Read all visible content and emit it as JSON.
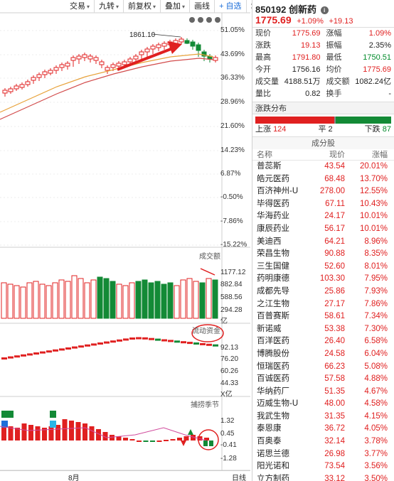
{
  "toolbar": {
    "items": [
      "交易",
      "九转",
      "前复权",
      "叠加",
      "画线",
      "+ 自选",
      "≫"
    ]
  },
  "main_chart": {
    "peak_label": "1861.10",
    "y_labels": [
      "51.05%",
      "43.69%",
      "36.33%",
      "28.96%",
      "21.60%",
      "14.23%",
      "6.87%",
      "-0.50%",
      "-7.86%",
      "-15.22%"
    ]
  },
  "volume_pane": {
    "title": "成交额",
    "y_labels": [
      "1177.12",
      "882.84",
      "588.56",
      "294.28",
      "亿"
    ],
    "unit": "X亿"
  },
  "flow_pane": {
    "title": "流动资金",
    "y_labels": [
      "92.13",
      "76.20",
      "60.26",
      "44.33",
      "X亿"
    ]
  },
  "indicator_pane": {
    "title": "捕捞季节",
    "y_labels": [
      "1.32",
      "0.45",
      "-0.41",
      "-1.28"
    ]
  },
  "bottom_bar": {
    "month": "8月",
    "period": "日线"
  },
  "stock": {
    "code": "850192",
    "name": "创新药",
    "price": "1775.69",
    "change_pct": "+1.09%",
    "change_val": "+19.13"
  },
  "quote": {
    "rows": [
      [
        {
          "label": "现价",
          "value": "1775.69",
          "color": "red"
        },
        {
          "label": "涨幅",
          "value": "1.09%",
          "color": "red"
        }
      ],
      [
        {
          "label": "涨跌",
          "value": "19.13",
          "color": "red"
        },
        {
          "label": "振幅",
          "value": "2.35%",
          "color": "black"
        }
      ],
      [
        {
          "label": "最高",
          "value": "1791.80",
          "color": "red"
        },
        {
          "label": "最低",
          "value": "1750.51",
          "color": "green"
        }
      ],
      [
        {
          "label": "今开",
          "value": "1756.16",
          "color": "black"
        },
        {
          "label": "均价",
          "value": "1775.69",
          "color": "red"
        }
      ],
      [
        {
          "label": "成交量",
          "value": "4188.51万",
          "color": "black"
        },
        {
          "label": "成交额",
          "value": "1082.24亿",
          "color": "black"
        }
      ],
      [
        {
          "label": "量比",
          "value": "0.82",
          "color": "black"
        },
        {
          "label": "换手",
          "value": "-",
          "color": "black"
        }
      ]
    ]
  },
  "distribution": {
    "title": "涨跌分布",
    "up_label": "上涨",
    "up": "124",
    "flat_label": "平",
    "flat": "2",
    "down_label": "下跌",
    "down": "87"
  },
  "constituents": {
    "title": "成分股",
    "col_name": "名称",
    "col_price": "现价",
    "col_change": "涨幅",
    "rows": [
      {
        "name": "普蕊斯",
        "price": "43.54",
        "change": "20.01%"
      },
      {
        "name": "皓元医药",
        "price": "68.48",
        "change": "13.70%"
      },
      {
        "name": "百济神州-U",
        "price": "278.00",
        "change": "12.55%"
      },
      {
        "name": "毕得医药",
        "price": "67.11",
        "change": "10.43%"
      },
      {
        "name": "华海药业",
        "price": "24.17",
        "change": "10.01%"
      },
      {
        "name": "康辰药业",
        "price": "56.17",
        "change": "10.01%"
      },
      {
        "name": "美迪西",
        "price": "64.21",
        "change": "8.96%"
      },
      {
        "name": "荣昌生物",
        "price": "90.88",
        "change": "8.35%"
      },
      {
        "name": "三生国健",
        "price": "52.60",
        "change": "8.01%"
      },
      {
        "name": "药明康德",
        "price": "103.30",
        "change": "7.95%"
      },
      {
        "name": "成都先导",
        "price": "25.86",
        "change": "7.93%"
      },
      {
        "name": "之江生物",
        "price": "27.17",
        "change": "7.86%"
      },
      {
        "name": "百普赛斯",
        "price": "58.61",
        "change": "7.34%"
      },
      {
        "name": "新诺威",
        "price": "53.38",
        "change": "7.30%"
      },
      {
        "name": "百洋医药",
        "price": "26.40",
        "change": "6.58%"
      },
      {
        "name": "博腾股份",
        "price": "24.58",
        "change": "6.04%"
      },
      {
        "name": "恒瑞医药",
        "price": "66.23",
        "change": "5.08%"
      },
      {
        "name": "百诚医药",
        "price": "57.58",
        "change": "4.88%"
      },
      {
        "name": "华纳药厂",
        "price": "51.35",
        "change": "4.67%"
      },
      {
        "name": "迈威生物-U",
        "price": "48.00",
        "change": "4.58%"
      },
      {
        "name": "我武生物",
        "price": "31.35",
        "change": "4.15%"
      },
      {
        "name": "泰恩康",
        "price": "36.72",
        "change": "4.05%"
      },
      {
        "name": "百奥泰",
        "price": "32.14",
        "change": "3.78%"
      },
      {
        "name": "诺思兰德",
        "price": "26.98",
        "change": "3.77%"
      },
      {
        "name": "阳光诺和",
        "price": "73.54",
        "change": "3.56%"
      },
      {
        "name": "立方制药",
        "price": "33.12",
        "change": "3.50%"
      }
    ]
  }
}
